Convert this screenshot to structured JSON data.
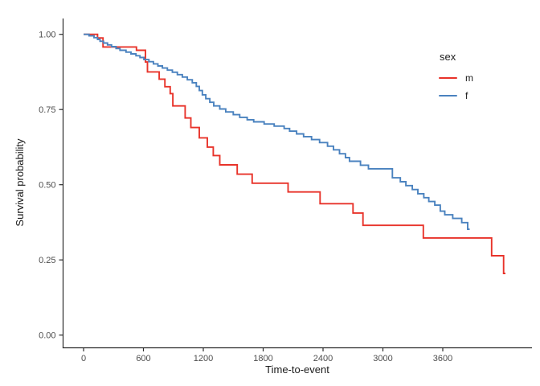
{
  "chart_data": {
    "type": "line",
    "subtype": "kaplan-meier-step-curves",
    "title": "",
    "xlabel": "Time-to-event",
    "ylabel": "Survival probability",
    "x_ticks": [
      0,
      600,
      1200,
      1800,
      2400,
      3000,
      3600
    ],
    "y_ticks": [
      {
        "value": 0.0,
        "label": "0.00"
      },
      {
        "value": 0.25,
        "label": "0.25"
      },
      {
        "value": 0.5,
        "label": "0.50"
      },
      {
        "value": 0.75,
        "label": "0.75"
      },
      {
        "value": 1.0,
        "label": "1.00"
      }
    ],
    "xlim": [
      -210,
      4480
    ],
    "ylim": [
      0,
      1.0
    ],
    "grid": false,
    "axis_color": "#2b2b2b",
    "tick_label_color": "#4d4d4d",
    "legend": {
      "title": "sex",
      "position": "right",
      "entries": [
        {
          "label": "m",
          "color": "#E8332A"
        },
        {
          "label": "f",
          "color": "#4A82BF"
        }
      ]
    },
    "series": [
      {
        "name": "m",
        "color": "#E8332A",
        "end_time": 4228,
        "points": [
          [
            0,
            1.0
          ],
          [
            140,
            0.988
          ],
          [
            195,
            0.958
          ],
          [
            530,
            0.947
          ],
          [
            620,
            0.908
          ],
          [
            640,
            0.875
          ],
          [
            758,
            0.851
          ],
          [
            815,
            0.826
          ],
          [
            868,
            0.803
          ],
          [
            895,
            0.762
          ],
          [
            1018,
            0.722
          ],
          [
            1075,
            0.69
          ],
          [
            1160,
            0.656
          ],
          [
            1240,
            0.625
          ],
          [
            1300,
            0.597
          ],
          [
            1365,
            0.566
          ],
          [
            1540,
            0.535
          ],
          [
            1690,
            0.505
          ],
          [
            2050,
            0.476
          ],
          [
            2370,
            0.437
          ],
          [
            2700,
            0.406
          ],
          [
            2800,
            0.365
          ],
          [
            3405,
            0.323
          ],
          [
            4090,
            0.264
          ],
          [
            4210,
            0.205
          ]
        ]
      },
      {
        "name": "f",
        "color": "#4A82BF",
        "end_time": 3870,
        "points": [
          [
            0,
            1.0
          ],
          [
            55,
            0.995
          ],
          [
            105,
            0.989
          ],
          [
            140,
            0.983
          ],
          [
            165,
            0.977
          ],
          [
            200,
            0.971
          ],
          [
            240,
            0.965
          ],
          [
            280,
            0.959
          ],
          [
            325,
            0.953
          ],
          [
            365,
            0.947
          ],
          [
            425,
            0.941
          ],
          [
            475,
            0.935
          ],
          [
            525,
            0.929
          ],
          [
            565,
            0.923
          ],
          [
            605,
            0.916
          ],
          [
            655,
            0.909
          ],
          [
            700,
            0.902
          ],
          [
            745,
            0.895
          ],
          [
            790,
            0.888
          ],
          [
            840,
            0.881
          ],
          [
            890,
            0.874
          ],
          [
            940,
            0.866
          ],
          [
            990,
            0.858
          ],
          [
            1040,
            0.849
          ],
          [
            1090,
            0.839
          ],
          [
            1130,
            0.827
          ],
          [
            1160,
            0.813
          ],
          [
            1190,
            0.799
          ],
          [
            1225,
            0.786
          ],
          [
            1265,
            0.774
          ],
          [
            1305,
            0.762
          ],
          [
            1365,
            0.752
          ],
          [
            1425,
            0.742
          ],
          [
            1500,
            0.733
          ],
          [
            1565,
            0.724
          ],
          [
            1640,
            0.716
          ],
          [
            1705,
            0.709
          ],
          [
            1810,
            0.702
          ],
          [
            1910,
            0.695
          ],
          [
            2010,
            0.687
          ],
          [
            2065,
            0.678
          ],
          [
            2135,
            0.669
          ],
          [
            2205,
            0.66
          ],
          [
            2285,
            0.65
          ],
          [
            2365,
            0.64
          ],
          [
            2445,
            0.628
          ],
          [
            2505,
            0.616
          ],
          [
            2565,
            0.603
          ],
          [
            2625,
            0.59
          ],
          [
            2665,
            0.578
          ],
          [
            2775,
            0.565
          ],
          [
            2855,
            0.553
          ],
          [
            3095,
            0.523
          ],
          [
            3175,
            0.51
          ],
          [
            3230,
            0.497
          ],
          [
            3295,
            0.484
          ],
          [
            3350,
            0.47
          ],
          [
            3410,
            0.457
          ],
          [
            3460,
            0.444
          ],
          [
            3520,
            0.432
          ],
          [
            3575,
            0.412
          ],
          [
            3620,
            0.4
          ],
          [
            3700,
            0.388
          ],
          [
            3790,
            0.374
          ],
          [
            3850,
            0.352
          ]
        ]
      }
    ]
  }
}
